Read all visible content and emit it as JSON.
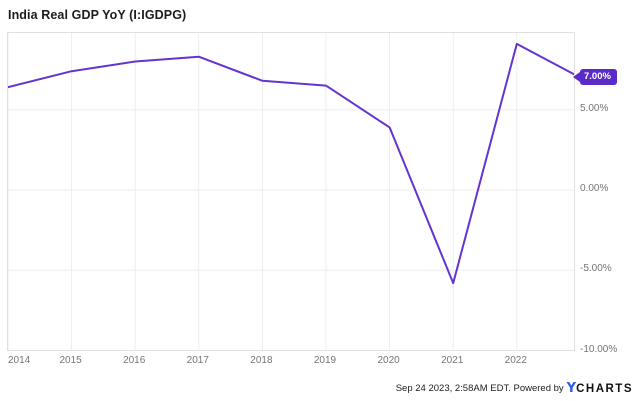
{
  "header": {
    "title": "India Real GDP YoY (I:IGDPG)"
  },
  "chart_data": {
    "type": "line",
    "title": "India Real GDP YoY (I:IGDPG)",
    "series": [
      {
        "name": "India Real GDP YoY",
        "x": [
          "2013-12-31",
          "2014-12-31",
          "2015-12-31",
          "2016-12-31",
          "2017-12-31",
          "2018-12-31",
          "2019-12-31",
          "2020-12-31",
          "2021-12-31",
          "2022-12-31"
        ],
        "values": [
          6.4,
          7.4,
          8.0,
          8.3,
          6.8,
          6.5,
          3.9,
          -5.8,
          9.1,
          7.0
        ]
      }
    ],
    "last_value": 7.0,
    "last_value_label": "7.00%",
    "xlabel": "",
    "ylabel": "",
    "xaxis": {
      "ticks": [
        2014,
        2015,
        2016,
        2017,
        2018,
        2019,
        2020,
        2021,
        2022
      ]
    },
    "yaxis": {
      "ticks": [
        {
          "label": "5.00%",
          "value": 5
        },
        {
          "label": "0.00%",
          "value": 0
        },
        {
          "label": "-5.00%",
          "value": -5
        },
        {
          "label": "-10.00%",
          "value": -10
        }
      ],
      "ylim": [
        -10,
        9.8
      ]
    },
    "grid": true,
    "legend": false
  },
  "footer": {
    "timestamp_powered": "Sep 24 2023, 2:58AM EDT. Powered by",
    "logo_y": "Y",
    "logo_charts": "CHARTS"
  },
  "colors": {
    "line": "#6334d1",
    "badge_bg": "#5b2bc7",
    "grid": "#ededed",
    "plot_border": "#e0e0e0",
    "axis_text": "#757575",
    "title_text": "#1c1c1c",
    "logo_y": "#2b5ce6"
  }
}
